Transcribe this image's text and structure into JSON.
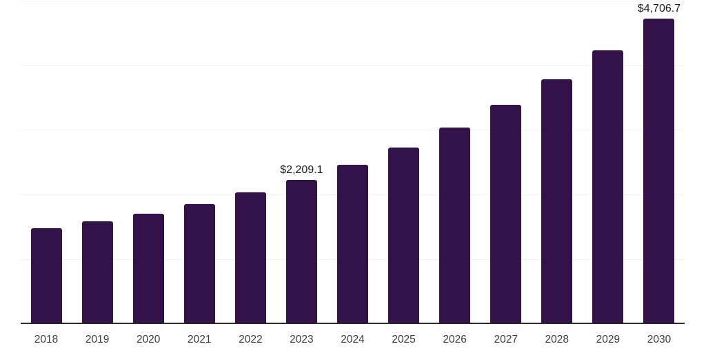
{
  "page": {
    "background": "#ffffff"
  },
  "chart_data": {
    "type": "bar",
    "title": "",
    "xlabel": "",
    "ylabel": "",
    "categories": [
      "2018",
      "2019",
      "2020",
      "2021",
      "2022",
      "2023",
      "2024",
      "2025",
      "2026",
      "2027",
      "2028",
      "2029",
      "2030"
    ],
    "values": [
      1466,
      1572,
      1690,
      1831,
      2013,
      2209.1,
      2446,
      2713,
      3019,
      3377,
      3765,
      4219,
      4706.7
    ],
    "data_labels": [
      "",
      "",
      "",
      "",
      "",
      "$2,209.1",
      "",
      "",
      "",
      "",
      "",
      "",
      "$4,706.7"
    ],
    "ylim": [
      0,
      5000
    ],
    "gridline_values": [
      1000,
      2000,
      3000,
      4000,
      5000
    ],
    "grid": "horizontal",
    "y_axis_labels_visible": false,
    "legend_position": "none",
    "colors": {
      "bar": "#321248",
      "axis_line": "#2b2b2b",
      "gridline": "#f1f1f1",
      "data_label": "#1c1c1c",
      "tick_label": "#3d3d3d",
      "background": "#ffffff"
    }
  }
}
